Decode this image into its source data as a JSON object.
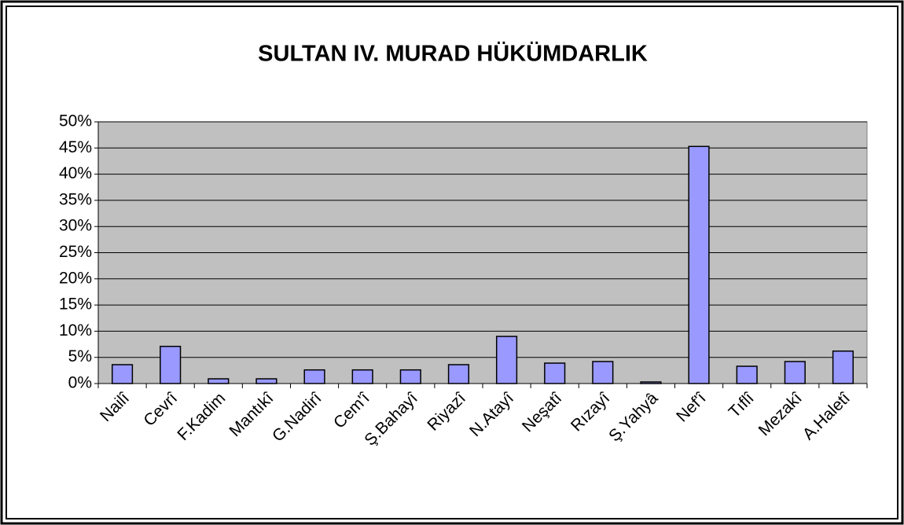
{
  "chart_data": {
    "type": "bar",
    "title": "SULTAN IV. MURAD HÜKÜMDARLIK",
    "categories": [
      "Nailî",
      "Cevrî",
      "F.Kadim",
      "Mantıkî",
      "G.Nadirî",
      "Cem'î",
      "Ş.Bahayî",
      "Riyazî",
      "N.Atayî",
      "Neşatî",
      "Rızayî",
      "Ş.Yahyâ",
      "Nef'î",
      "Tıflî",
      "Mezakî",
      "A.Haletî"
    ],
    "values": [
      3.6,
      7.1,
      0.9,
      0.9,
      2.6,
      2.6,
      2.6,
      3.6,
      9.0,
      3.9,
      4.2,
      0.3,
      45.3,
      3.3,
      4.2,
      6.2
    ],
    "color": "#9999ff",
    "ylim": [
      0,
      50
    ],
    "yticks": [
      {
        "value": 0,
        "label": "0%"
      },
      {
        "value": 5,
        "label": "5%"
      },
      {
        "value": 10,
        "label": "10%"
      },
      {
        "value": 15,
        "label": "15%"
      },
      {
        "value": 20,
        "label": "20%"
      },
      {
        "value": 25,
        "label": "25%"
      },
      {
        "value": 30,
        "label": "30%"
      },
      {
        "value": 35,
        "label": "35%"
      },
      {
        "value": 40,
        "label": "40%"
      },
      {
        "value": 45,
        "label": "45%"
      },
      {
        "value": 50,
        "label": "50%"
      }
    ],
    "grid": true
  }
}
